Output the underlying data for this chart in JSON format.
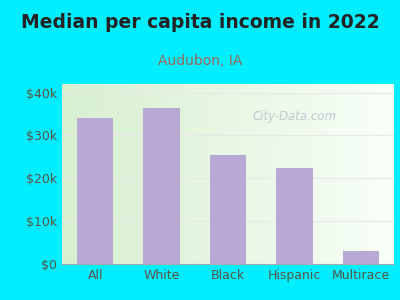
{
  "title": "Median per capita income in 2022",
  "subtitle": "Audubon, IA",
  "categories": [
    "All",
    "White",
    "Black",
    "Hispanic",
    "Multirace"
  ],
  "values": [
    34000,
    36500,
    25500,
    22500,
    3000
  ],
  "bar_color": "#b8a8d4",
  "background_outer": "#00eeff",
  "background_inner_topleft": "#d8efd0",
  "background_inner_bottomright": "#f8fff8",
  "title_color": "#222222",
  "subtitle_color": "#996655",
  "tick_label_color": "#555544",
  "ylim": [
    0,
    42000
  ],
  "yticks": [
    0,
    10000,
    20000,
    30000,
    40000
  ],
  "ytick_labels": [
    "$0",
    "$10k",
    "$20k",
    "$30k",
    "$40k"
  ],
  "title_fontsize": 13.5,
  "subtitle_fontsize": 10,
  "tick_fontsize": 9,
  "watermark_text": "City-Data.com",
  "watermark_color": "#c0c8d0",
  "grid_color": "#e8e8e8"
}
